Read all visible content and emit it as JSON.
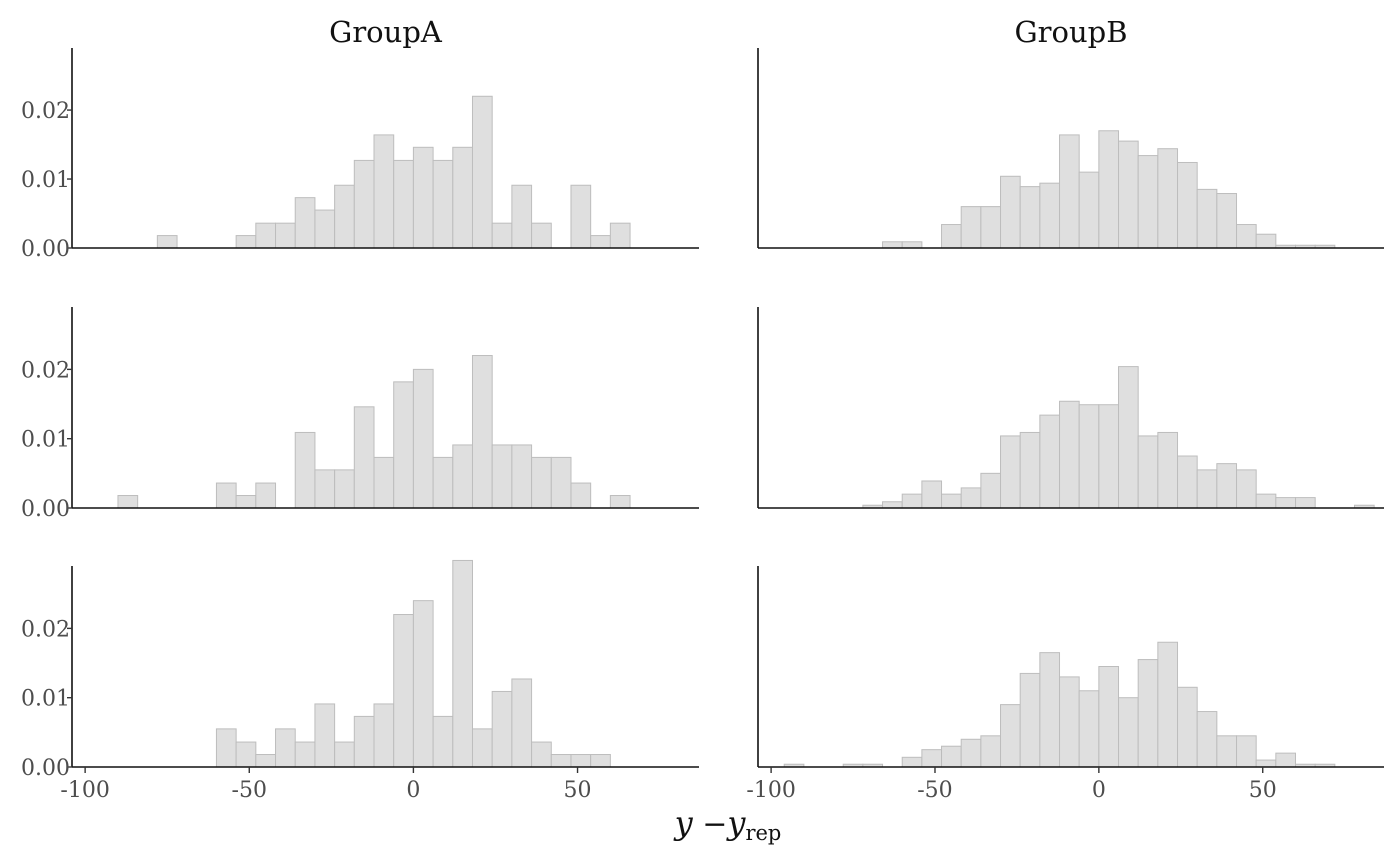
{
  "chart_data": {
    "type": "histogram",
    "xlabel": {
      "main": "y",
      "sep": " −",
      "sub_main": "y",
      "sub": "rep"
    },
    "facet_columns": [
      "GroupA",
      "GroupB"
    ],
    "panels": [
      {
        "column": "GroupA",
        "row": 1,
        "xlim": [
          -104,
          87
        ],
        "ylim": [
          0,
          0.029
        ],
        "bins": [
          [
            -75,
            0.0018
          ],
          [
            -51,
            0.0018
          ],
          [
            -45,
            0.0036
          ],
          [
            -39,
            0.0036
          ],
          [
            -33,
            0.0073
          ],
          [
            -27,
            0.0055
          ],
          [
            -21,
            0.0091
          ],
          [
            -15,
            0.0127
          ],
          [
            -9,
            0.0164
          ],
          [
            -3,
            0.0127
          ],
          [
            3,
            0.0146
          ],
          [
            9,
            0.0127
          ],
          [
            15,
            0.0146
          ],
          [
            21,
            0.022
          ],
          [
            27,
            0.0036
          ],
          [
            33,
            0.0091
          ],
          [
            39,
            0.0036
          ],
          [
            51,
            0.0091
          ],
          [
            57,
            0.0018
          ],
          [
            63,
            0.0036
          ]
        ]
      },
      {
        "column": "GroupB",
        "row": 1,
        "xlim": [
          -104,
          87
        ],
        "ylim": [
          0,
          0.029
        ],
        "bins": [
          [
            -63,
            0.0009
          ],
          [
            -57,
            0.0009
          ],
          [
            -45,
            0.0034
          ],
          [
            -39,
            0.006
          ],
          [
            -33,
            0.006
          ],
          [
            -27,
            0.0104
          ],
          [
            -21,
            0.0089
          ],
          [
            -15,
            0.0094
          ],
          [
            -9,
            0.0164
          ],
          [
            -3,
            0.011
          ],
          [
            3,
            0.017
          ],
          [
            9,
            0.0155
          ],
          [
            15,
            0.0134
          ],
          [
            21,
            0.0144
          ],
          [
            27,
            0.0124
          ],
          [
            33,
            0.0085
          ],
          [
            39,
            0.0079
          ],
          [
            45,
            0.0034
          ],
          [
            51,
            0.002
          ],
          [
            57,
            0.0004
          ],
          [
            63,
            0.0004
          ],
          [
            69,
            0.0004
          ]
        ]
      },
      {
        "column": "GroupA",
        "row": 2,
        "xlim": [
          -104,
          87
        ],
        "ylim": [
          0,
          0.029
        ],
        "bins": [
          [
            -87,
            0.0018
          ],
          [
            -57,
            0.0036
          ],
          [
            -51,
            0.0018
          ],
          [
            -45,
            0.0036
          ],
          [
            -33,
            0.0109
          ],
          [
            -27,
            0.0055
          ],
          [
            -21,
            0.0055
          ],
          [
            -15,
            0.0146
          ],
          [
            -9,
            0.0073
          ],
          [
            -3,
            0.0182
          ],
          [
            3,
            0.02
          ],
          [
            9,
            0.0073
          ],
          [
            15,
            0.0091
          ],
          [
            21,
            0.022
          ],
          [
            27,
            0.0091
          ],
          [
            33,
            0.0091
          ],
          [
            39,
            0.0073
          ],
          [
            45,
            0.0073
          ],
          [
            51,
            0.0036
          ],
          [
            63,
            0.0018
          ]
        ]
      },
      {
        "column": "GroupB",
        "row": 2,
        "xlim": [
          -104,
          87
        ],
        "ylim": [
          0,
          0.029
        ],
        "bins": [
          [
            -69,
            0.0004
          ],
          [
            -63,
            0.0009
          ],
          [
            -57,
            0.002
          ],
          [
            -51,
            0.0039
          ],
          [
            -45,
            0.002
          ],
          [
            -39,
            0.0029
          ],
          [
            -33,
            0.005
          ],
          [
            -27,
            0.0104
          ],
          [
            -21,
            0.0109
          ],
          [
            -15,
            0.0134
          ],
          [
            -9,
            0.0154
          ],
          [
            -3,
            0.0149
          ],
          [
            3,
            0.0149
          ],
          [
            9,
            0.0204
          ],
          [
            15,
            0.0104
          ],
          [
            21,
            0.0109
          ],
          [
            27,
            0.0075
          ],
          [
            33,
            0.0055
          ],
          [
            39,
            0.0064
          ],
          [
            45,
            0.0055
          ],
          [
            51,
            0.002
          ],
          [
            57,
            0.0015
          ],
          [
            63,
            0.0015
          ],
          [
            81,
            0.0004
          ]
        ]
      },
      {
        "column": "GroupA",
        "row": 3,
        "xlim": [
          -104,
          87
        ],
        "ylim": [
          0,
          0.029
        ],
        "bins": [
          [
            -57,
            0.0055
          ],
          [
            -51,
            0.0036
          ],
          [
            -45,
            0.0018
          ],
          [
            -39,
            0.0055
          ],
          [
            -33,
            0.0036
          ],
          [
            -27,
            0.0091
          ],
          [
            -21,
            0.0036
          ],
          [
            -15,
            0.0073
          ],
          [
            -9,
            0.0091
          ],
          [
            -3,
            0.022
          ],
          [
            3,
            0.024
          ],
          [
            9,
            0.0073
          ],
          [
            15,
            0.0298
          ],
          [
            21,
            0.0055
          ],
          [
            27,
            0.0109
          ],
          [
            33,
            0.0127
          ],
          [
            39,
            0.0036
          ],
          [
            45,
            0.0018
          ],
          [
            51,
            0.0018
          ],
          [
            57,
            0.0018
          ]
        ]
      },
      {
        "column": "GroupB",
        "row": 3,
        "xlim": [
          -104,
          87
        ],
        "ylim": [
          0,
          0.029
        ],
        "bins": [
          [
            -93,
            0.0004
          ],
          [
            -75,
            0.0004
          ],
          [
            -69,
            0.0004
          ],
          [
            -57,
            0.0014
          ],
          [
            -51,
            0.0025
          ],
          [
            -45,
            0.003
          ],
          [
            -39,
            0.004
          ],
          [
            -33,
            0.0045
          ],
          [
            -27,
            0.009
          ],
          [
            -21,
            0.0135
          ],
          [
            -15,
            0.0165
          ],
          [
            -9,
            0.013
          ],
          [
            -3,
            0.011
          ],
          [
            3,
            0.0145
          ],
          [
            9,
            0.01
          ],
          [
            15,
            0.0155
          ],
          [
            21,
            0.018
          ],
          [
            27,
            0.0115
          ],
          [
            33,
            0.008
          ],
          [
            39,
            0.0045
          ],
          [
            45,
            0.0045
          ],
          [
            51,
            0.001
          ],
          [
            57,
            0.002
          ],
          [
            63,
            0.0004
          ],
          [
            69,
            0.0004
          ]
        ]
      }
    ],
    "binwidth": 6,
    "y_ticks": [
      0,
      0.01,
      0.02
    ],
    "y_tick_labels": [
      "0.00",
      "0.01",
      "0.02"
    ],
    "x_ticks": [
      -100,
      -50,
      0,
      50
    ],
    "x_tick_labels": [
      "-100",
      "-50",
      "0",
      "50"
    ],
    "grid": false,
    "colors": {
      "fill": "#dfdfdf",
      "outline": "#bdbdbd",
      "axis": "#111111"
    }
  }
}
